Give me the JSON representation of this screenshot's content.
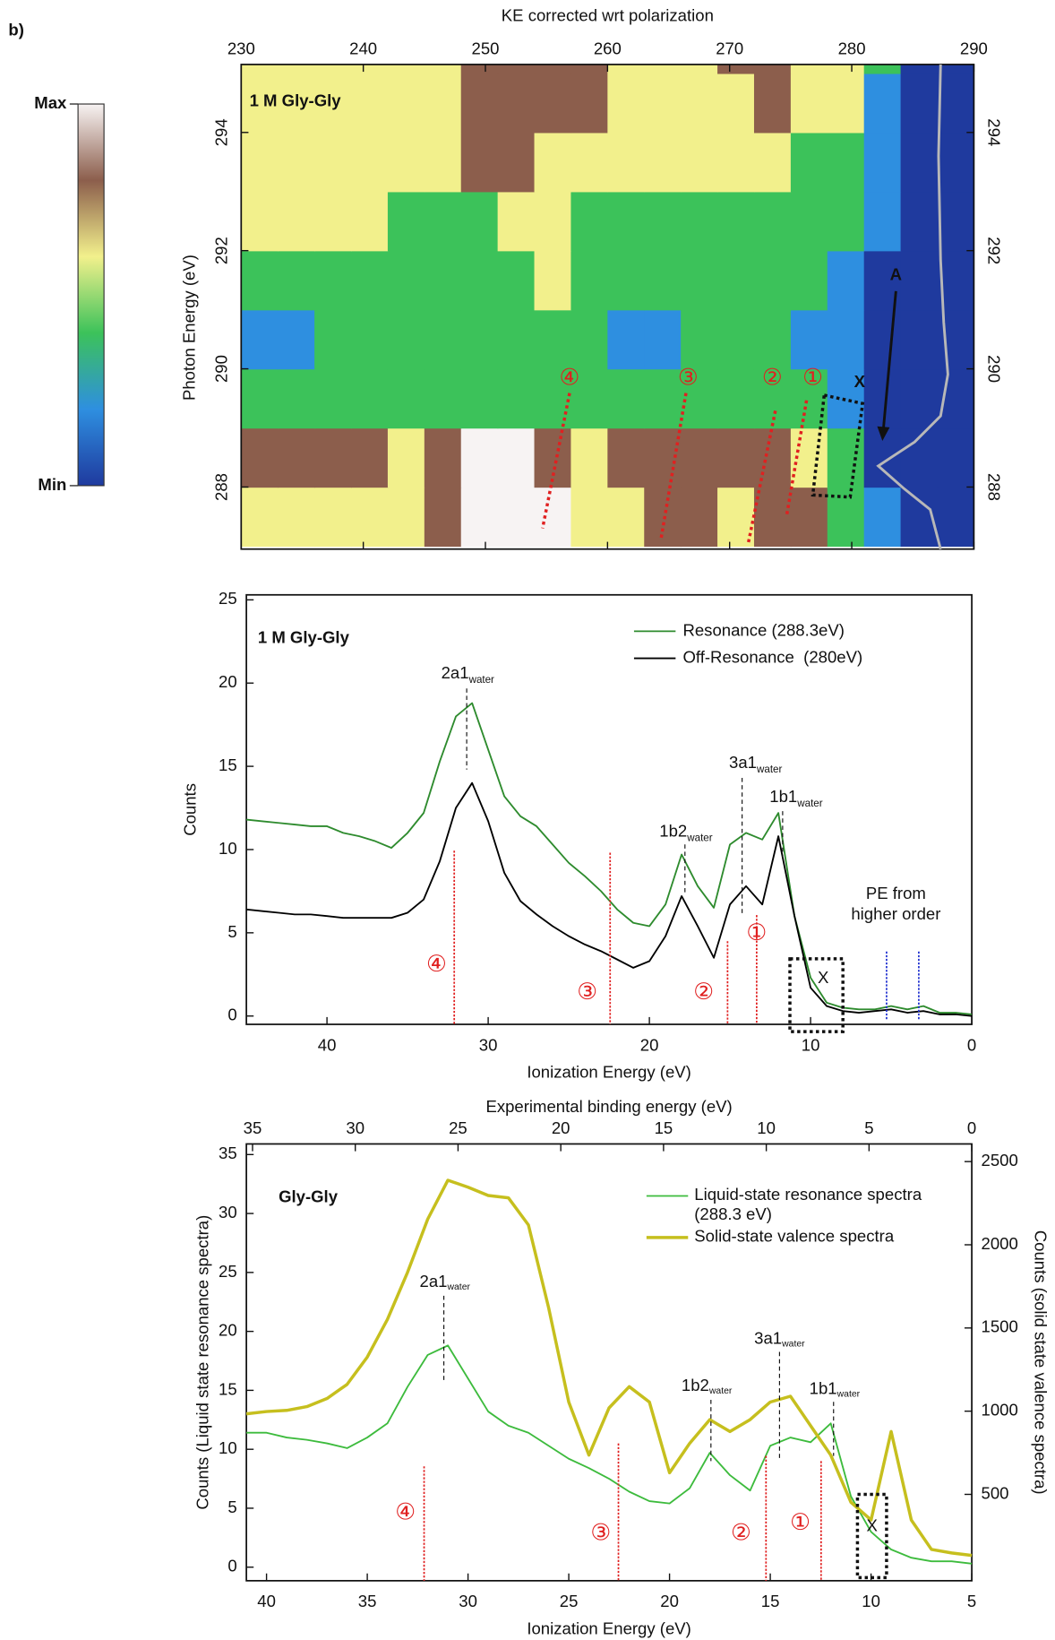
{
  "panel_label": "b)",
  "chart_data": [
    {
      "type": "heatmap",
      "xlabel": "KE corrected wrt polarization",
      "ylabel": "Photon Energy (eV)",
      "xlim": [
        230,
        290
      ],
      "ylim": [
        286.95,
        295.15
      ],
      "xticks": [
        230,
        240,
        250,
        260,
        270,
        280,
        290
      ],
      "yticks": [
        288,
        290,
        292,
        294
      ],
      "y2ticks": [
        288,
        290,
        292,
        294
      ],
      "x": [
        231.5,
        234.5,
        237.5,
        240.5,
        243.5,
        246.5,
        249.5,
        252.5,
        255.5,
        258.5,
        261.5,
        264.5,
        267.5,
        270.5,
        273.5,
        276.5,
        279.5,
        282.5,
        285.5,
        288.5
      ],
      "y": [
        287.5,
        288.5,
        289.5,
        290.5,
        291.5,
        292.5,
        293.5,
        294.5,
        295.5
      ],
      "z": [
        [
          3,
          3,
          3,
          3,
          3,
          4,
          5,
          5,
          5,
          3,
          3,
          4,
          4,
          3,
          4,
          4,
          2,
          1,
          0,
          0
        ],
        [
          4,
          4,
          4,
          4,
          3,
          4,
          5,
          5,
          4,
          3,
          4,
          4,
          4,
          4,
          4,
          3,
          2,
          0,
          0,
          0
        ],
        [
          2,
          2,
          2,
          2,
          2,
          2,
          2,
          2,
          2,
          2,
          2,
          2,
          2,
          2,
          2,
          2,
          1,
          0,
          0,
          0
        ],
        [
          1,
          1,
          2,
          2,
          2,
          2,
          2,
          2,
          2,
          2,
          1,
          1,
          2,
          2,
          2,
          1,
          1,
          0,
          0,
          0
        ],
        [
          2,
          2,
          2,
          2,
          2,
          2,
          2,
          2,
          3,
          2,
          2,
          2,
          2,
          2,
          2,
          2,
          1,
          0,
          0,
          0
        ],
        [
          3,
          3,
          3,
          3,
          2,
          2,
          2,
          3,
          3,
          2,
          2,
          2,
          2,
          2,
          2,
          2,
          2,
          1,
          0,
          0
        ],
        [
          3,
          3,
          3,
          3,
          3,
          3,
          4,
          4,
          3,
          3,
          3,
          3,
          3,
          3,
          3,
          2,
          2,
          1,
          0,
          0
        ],
        [
          3,
          3,
          3,
          3,
          3,
          3,
          4,
          4,
          4,
          4,
          3,
          3,
          3,
          3,
          4,
          3,
          3,
          1,
          0,
          0
        ],
        [
          3,
          3,
          3,
          3,
          3,
          3,
          4,
          4,
          4,
          4,
          3,
          3,
          3,
          4,
          4,
          3,
          3,
          2,
          0,
          0
        ]
      ],
      "colorbar": {
        "zlim": [
          0,
          5
        ],
        "ticks": [
          {
            "value": 5,
            "label": "Max"
          },
          {
            "value": 0,
            "label": "Min"
          }
        ],
        "colors": [
          "#1f3a9e",
          "#2e8fe0",
          "#3cc25a",
          "#f2f08c",
          "#8c5e4c",
          "#f7f3f3"
        ]
      },
      "annotations": [
        "1 M Gly-Gly",
        "④",
        "③",
        "②",
        "①",
        "X",
        "A"
      ]
    },
    {
      "type": "line",
      "xlabel": "Ionization Energy (eV)",
      "ylabel": "Counts",
      "xlim": [
        45,
        0
      ],
      "ylim": [
        -0.5,
        25.3
      ],
      "xticks": [
        40,
        30,
        20,
        10,
        0
      ],
      "yticks": [
        0,
        5,
        10,
        15,
        20,
        25
      ],
      "legend": "top-right",
      "x": [
        45,
        44,
        43,
        42,
        41,
        40,
        39,
        38,
        37,
        36,
        35,
        34,
        33,
        32,
        31,
        30,
        29,
        28,
        27,
        26,
        25,
        24,
        23,
        22,
        21,
        20,
        19,
        18,
        17,
        16,
        15,
        14,
        13,
        12,
        11,
        10,
        9,
        8,
        7,
        6,
        5,
        4,
        3,
        2,
        1,
        0
      ],
      "series": [
        {
          "name": "Resonance (288.3eV)",
          "color": "#2e8b2e",
          "values": [
            11.8,
            11.7,
            11.6,
            11.5,
            11.4,
            11.4,
            11.0,
            10.8,
            10.5,
            10.1,
            11.0,
            12.2,
            15.3,
            18.0,
            18.8,
            16.0,
            13.2,
            12.0,
            11.4,
            10.3,
            9.2,
            8.4,
            7.5,
            6.4,
            5.6,
            5.4,
            6.7,
            9.7,
            7.8,
            6.5,
            10.3,
            11.0,
            10.6,
            12.2,
            6.0,
            2.3,
            0.8,
            0.5,
            0.4,
            0.4,
            0.6,
            0.4,
            0.6,
            0.2,
            0.2,
            0.1
          ]
        },
        {
          "name": "Off-Resonance  (280eV)",
          "color": "#000000",
          "values": [
            6.4,
            6.3,
            6.2,
            6.1,
            6.1,
            6.0,
            5.9,
            5.9,
            5.9,
            5.9,
            6.2,
            7.0,
            9.3,
            12.5,
            14.0,
            11.7,
            8.6,
            6.9,
            6.1,
            5.4,
            4.8,
            4.3,
            3.9,
            3.4,
            2.9,
            3.3,
            4.8,
            7.2,
            5.4,
            3.5,
            6.7,
            7.8,
            6.7,
            10.8,
            6.0,
            1.7,
            0.6,
            0.3,
            0.2,
            0.3,
            0.4,
            0.2,
            0.3,
            0.1,
            0.1,
            0.0
          ]
        }
      ],
      "peaks": [
        {
          "name": "2a1",
          "sub": "water"
        },
        {
          "name": "1b2",
          "sub": "water"
        },
        {
          "name": "3a1",
          "sub": "water"
        },
        {
          "name": "1b1",
          "sub": "water"
        }
      ],
      "annotations": [
        "1 M Gly-Gly",
        "PE from",
        "higher order",
        "④",
        "③",
        "②",
        "①",
        "X"
      ]
    },
    {
      "type": "line",
      "xlabel": "Ionization Energy (eV)",
      "x2label": "Experimental binding energy (eV)",
      "ylabel": "Counts (Liquid state resonance spectra)",
      "y2label": "Counts (solid state valence spectra)",
      "xlim": [
        41,
        5
      ],
      "x2lim": [
        35.3,
        0
      ],
      "ylim": [
        -1.15,
        35.9
      ],
      "y2lim": [
        -19,
        2606
      ],
      "xticks": [
        40,
        35,
        30,
        25,
        20,
        15,
        10,
        5
      ],
      "x2ticks": [
        35,
        30,
        25,
        20,
        15,
        10,
        5,
        0
      ],
      "yticks": [
        0,
        5,
        10,
        15,
        20,
        25,
        30,
        35
      ],
      "y2ticks": [
        500,
        1000,
        1500,
        2000,
        2500
      ],
      "legend": "top-right",
      "x": [
        41,
        40,
        39,
        38,
        37,
        36,
        35,
        34,
        33,
        32,
        31,
        30,
        29,
        28,
        27,
        26,
        25,
        24,
        23,
        22,
        21,
        20,
        19,
        18,
        17,
        16,
        15,
        14,
        13,
        12,
        11,
        10,
        9,
        8,
        7,
        6,
        5
      ],
      "series": [
        {
          "name": "Liquid-state resonance spectra (288.3 eV)",
          "color": "#3dbb3d",
          "axis": "y",
          "values": [
            11.4,
            11.4,
            11.0,
            10.8,
            10.5,
            10.1,
            11.0,
            12.2,
            15.3,
            18.0,
            18.8,
            16.0,
            13.2,
            12.0,
            11.4,
            10.3,
            9.2,
            8.4,
            7.5,
            6.4,
            5.6,
            5.4,
            6.7,
            9.7,
            7.8,
            6.5,
            10.3,
            11.0,
            10.6,
            12.2,
            6.0,
            3.0,
            1.5,
            0.8,
            0.5,
            0.5,
            0.3
          ]
        },
        {
          "name": "Solid-state valence spectra",
          "color": "#c6bf1e",
          "axis": "y2",
          "values": [
            984,
            998,
            1005,
            1027,
            1076,
            1161,
            1325,
            1551,
            1835,
            2154,
            2388,
            2346,
            2296,
            2282,
            2119,
            1622,
            1055,
            736,
            1020,
            1147,
            1055,
            630,
            807,
            949,
            878,
            949,
            1055,
            1090,
            913,
            736,
            452,
            346,
            878,
            346,
            169,
            148,
            133
          ]
        }
      ],
      "peaks": [
        {
          "name": "2a1",
          "sub": "water"
        },
        {
          "name": "1b2",
          "sub": "water"
        },
        {
          "name": "3a1",
          "sub": "water"
        },
        {
          "name": "1b1",
          "sub": "water"
        }
      ],
      "annotations": [
        "Gly-Gly",
        "④",
        "③",
        "②",
        "①",
        "X"
      ]
    }
  ]
}
